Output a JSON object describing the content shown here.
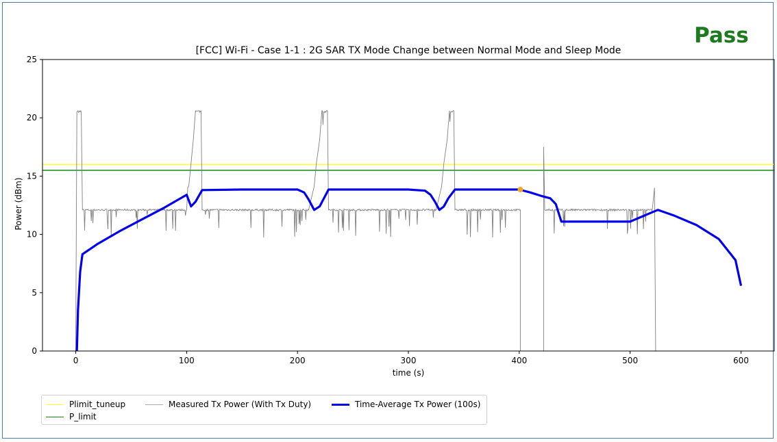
{
  "status": {
    "text": "Pass",
    "color": "#1e7a1e"
  },
  "chart_data": {
    "type": "line",
    "title": "[FCC] Wi-Fi - Case 1-1 : 2G SAR TX Mode Change between Normal Mode and Sleep Mode",
    "xlabel": "time (s)",
    "ylabel": "Power (dBm)",
    "xlim": [
      -30,
      630
    ],
    "ylim": [
      0,
      25
    ],
    "xticks": [
      0,
      100,
      200,
      300,
      400,
      500,
      600
    ],
    "yticks": [
      0,
      5,
      10,
      15,
      20,
      25
    ],
    "grid": false,
    "legend_position": "below-left",
    "hlines": [
      {
        "name": "Plimit_tuneup",
        "y": 16.0,
        "color": "#ffff33"
      },
      {
        "name": "P_limit",
        "y": 15.5,
        "color": "#138a13"
      }
    ],
    "series": [
      {
        "name": "Measured Tx Power (With Tx Duty)",
        "color": "#808080",
        "points": [
          [
            0,
            0
          ],
          [
            1,
            20.5
          ],
          [
            2,
            20.6
          ],
          [
            5,
            20.5
          ],
          [
            6,
            12.1
          ],
          [
            60,
            12.1
          ],
          [
            100,
            12.1
          ],
          [
            101,
            14.0
          ],
          [
            102,
            14.2
          ],
          [
            104,
            16.1
          ],
          [
            106,
            18.1
          ],
          [
            108,
            20.6
          ],
          [
            113,
            20.6
          ],
          [
            114,
            12.1
          ],
          [
            210,
            12.1
          ],
          [
            215,
            14.1
          ],
          [
            217,
            16.1
          ],
          [
            220,
            18.1
          ],
          [
            222,
            20.6
          ],
          [
            227,
            20.6
          ],
          [
            228,
            12.1
          ],
          [
            325,
            12.1
          ],
          [
            330,
            14.1
          ],
          [
            332,
            16.1
          ],
          [
            335,
            18.1
          ],
          [
            337,
            20.6
          ],
          [
            341,
            20.6
          ],
          [
            342,
            12.1
          ],
          [
            401,
            12.1
          ],
          [
            401,
            0
          ],
          [
            422,
            0
          ],
          [
            422,
            17.5
          ],
          [
            423,
            12.1
          ],
          [
            520,
            12.1
          ],
          [
            522,
            14.0
          ],
          [
            523,
            0
          ]
        ]
      },
      {
        "name": "Time-Average Tx Power (100s)",
        "color": "#0000ee",
        "points": [
          [
            1,
            0
          ],
          [
            2,
            3.5
          ],
          [
            4,
            6.8
          ],
          [
            6,
            8.3
          ],
          [
            20,
            9.2
          ],
          [
            40,
            10.3
          ],
          [
            60,
            11.3
          ],
          [
            80,
            12.3
          ],
          [
            100,
            13.4
          ],
          [
            104,
            12.4
          ],
          [
            108,
            12.8
          ],
          [
            114,
            13.8
          ],
          [
            150,
            13.85
          ],
          [
            200,
            13.85
          ],
          [
            206,
            13.6
          ],
          [
            210,
            13.0
          ],
          [
            215,
            12.1
          ],
          [
            220,
            12.4
          ],
          [
            228,
            13.85
          ],
          [
            260,
            13.85
          ],
          [
            300,
            13.85
          ],
          [
            315,
            13.75
          ],
          [
            320,
            13.4
          ],
          [
            324,
            12.8
          ],
          [
            328,
            12.1
          ],
          [
            332,
            12.4
          ],
          [
            336,
            13.1
          ],
          [
            342,
            13.85
          ],
          [
            370,
            13.85
          ],
          [
            400,
            13.85
          ],
          [
            410,
            13.6
          ],
          [
            420,
            13.3
          ],
          [
            428,
            13.1
          ],
          [
            433,
            12.6
          ],
          [
            438,
            11.1
          ],
          [
            470,
            11.1
          ],
          [
            500,
            11.1
          ],
          [
            520,
            11.9
          ],
          [
            525,
            12.1
          ],
          [
            540,
            11.6
          ],
          [
            560,
            10.8
          ],
          [
            580,
            9.6
          ],
          [
            595,
            7.8
          ],
          [
            600,
            5.6
          ]
        ]
      }
    ],
    "markers": [
      {
        "x": 401,
        "y": 13.85,
        "color": "#f5a623"
      }
    ]
  }
}
